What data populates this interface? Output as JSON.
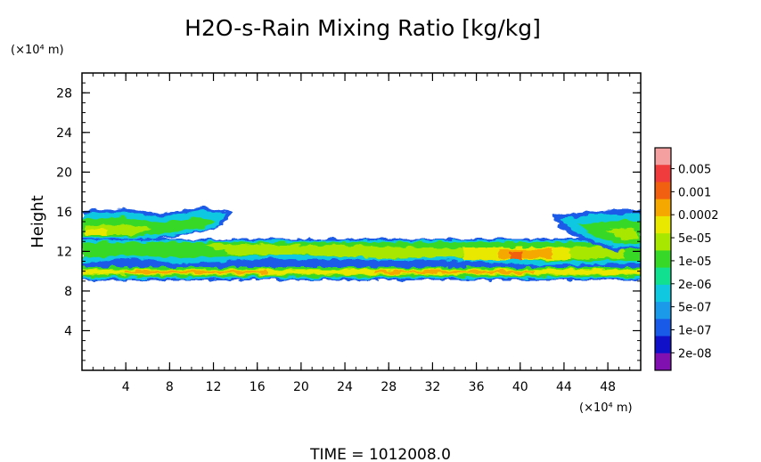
{
  "chart_data": {
    "type": "heatmap",
    "title": "H2O-s-Rain Mixing Ratio [kg/kg]",
    "ylabel": "Height",
    "xlabel": "",
    "x_unit": "(×10⁴ m)",
    "y_unit": "(×10⁴ m)",
    "xlim": [
      0,
      51
    ],
    "ylim": [
      0,
      30
    ],
    "x_ticks": [
      4,
      8,
      12,
      16,
      20,
      24,
      28,
      32,
      36,
      40,
      44,
      48
    ],
    "y_ticks": [
      4,
      8,
      12,
      16,
      20,
      24,
      28
    ],
    "colorbar": {
      "labels": [
        "0.005",
        "0.001",
        "0.0002",
        "5e-05",
        "1e-05",
        "2e-06",
        "5e-07",
        "1e-07",
        "2e-08"
      ],
      "colors": [
        "#f4a0a0",
        "#f03c3c",
        "#f06010",
        "#f5a800",
        "#e8e800",
        "#a8e800",
        "#38d828",
        "#10e090",
        "#10c8e0",
        "#1a9ae8",
        "#1a5ae8",
        "#1010c8",
        "#8010b0"
      ]
    },
    "time_label": "TIME = 1012008.0"
  }
}
